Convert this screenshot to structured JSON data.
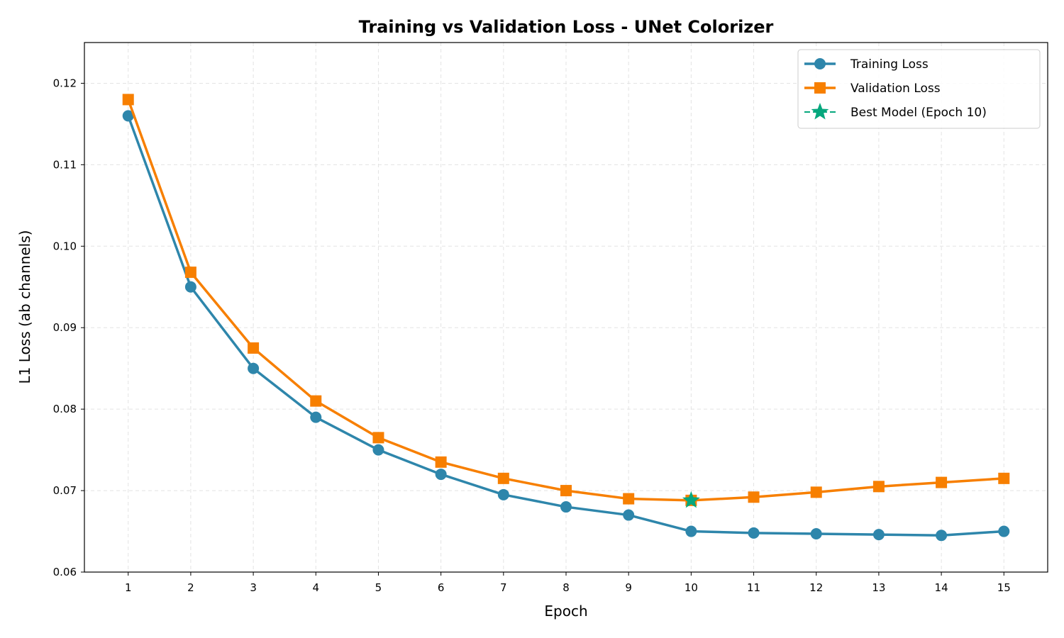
{
  "chart_data": {
    "type": "line",
    "title": "Training vs Validation Loss - UNet Colorizer",
    "xlabel": "Epoch",
    "ylabel": "L1 Loss (ab channels)",
    "x": [
      1,
      2,
      3,
      4,
      5,
      6,
      7,
      8,
      9,
      10,
      11,
      12,
      13,
      14,
      15
    ],
    "xticks": [
      "1",
      "2",
      "3",
      "4",
      "5",
      "6",
      "7",
      "8",
      "9",
      "10",
      "11",
      "12",
      "13",
      "14",
      "15"
    ],
    "xlim": [
      0.3,
      15.7
    ],
    "ylim": [
      0.06,
      0.125
    ],
    "yticks": [
      "0.06",
      "0.07",
      "0.08",
      "0.09",
      "0.10",
      "0.11",
      "0.12"
    ],
    "grid": true,
    "legend_position": "top-right",
    "series": [
      {
        "name": "Training Loss",
        "color": "#2e86ab",
        "marker": "circle",
        "values": [
          0.116,
          0.095,
          0.085,
          0.079,
          0.075,
          0.072,
          0.0695,
          0.068,
          0.067,
          0.065,
          0.0648,
          0.0647,
          0.0646,
          0.0645,
          0.065
        ]
      },
      {
        "name": "Validation Loss",
        "color": "#f77f00",
        "marker": "square",
        "values": [
          0.118,
          0.0968,
          0.0875,
          0.081,
          0.0765,
          0.0735,
          0.0715,
          0.07,
          0.069,
          0.0688,
          0.0692,
          0.0698,
          0.0705,
          0.071,
          0.0715
        ]
      }
    ],
    "best_model": {
      "name": "Best Model (Epoch 10)",
      "color": "#06a77d",
      "marker": "star",
      "x": 10,
      "y": 0.0688
    }
  }
}
